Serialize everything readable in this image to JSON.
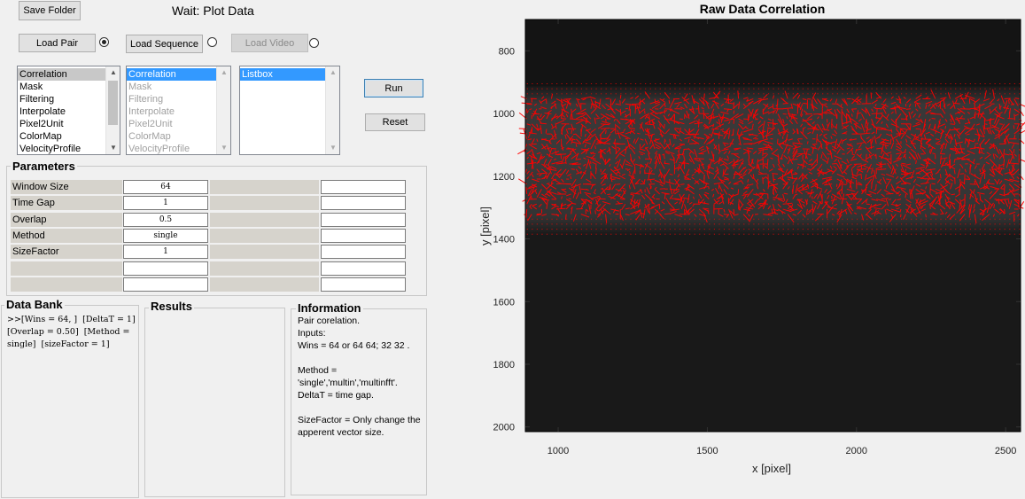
{
  "toolbar": {
    "save_folder": "Save Folder",
    "status": "Wait:  Plot Data",
    "load_pair": "Load Pair",
    "load_sequence": "Load Sequence",
    "load_video": "Load Video",
    "run": "Run",
    "reset": "Reset"
  },
  "listbox1": {
    "items": [
      "Correlation",
      "Mask",
      "Filtering",
      "Interpolate",
      "Pixel2Unit",
      "ColorMap",
      "VelocityProfile"
    ],
    "selected": 0
  },
  "listbox2": {
    "items": [
      "Correlation",
      "Mask",
      "Filtering",
      "Interpolate",
      "Pixel2Unit",
      "ColorMap",
      "VelocityProfile"
    ],
    "selected": 0
  },
  "listbox3": {
    "items": [
      "Listbox"
    ],
    "selected": 0
  },
  "parameters": {
    "title": "Parameters",
    "rows": [
      {
        "label": "Window Size",
        "value": "64"
      },
      {
        "label": "Time Gap",
        "value": "1"
      },
      {
        "label": "Overlap",
        "value": "0.5"
      },
      {
        "label": "Method",
        "value": "single"
      },
      {
        "label": "SizeFactor",
        "value": "1"
      },
      {
        "label": "",
        "value": ""
      },
      {
        "label": "",
        "value": ""
      }
    ]
  },
  "data_bank": {
    "title": "Data Bank",
    "text": ">>[Wins = 64, ]  [DeltaT = 1]\n[Overlap = 0.50]  [Method =\nsingle]  [sizeFactor = 1]"
  },
  "results": {
    "title": "Results",
    "text": ""
  },
  "information": {
    "title": "Information",
    "text": "Pair corelation.\nInputs:\nWins = 64 or 64 64; 32 32 .\n\nMethod =\n'single','multin','multinfft'.\nDeltaT = time gap.\n\nSizeFactor = Only change the\napperent vector size."
  },
  "chart_data": {
    "type": "image-with-vectors",
    "title": "Raw Data Correlation",
    "xlabel": "x [pixel]",
    "ylabel": "y [pixel]",
    "xlim": [
      890,
      2550
    ],
    "ylim": [
      2015,
      700
    ],
    "xticks": [
      1000,
      1500,
      2000,
      2500
    ],
    "yticks": [
      800,
      1000,
      1200,
      1400,
      1600,
      1800,
      2000
    ],
    "flow_band": [
      930,
      1370
    ],
    "vector_color": "#ff0000"
  }
}
